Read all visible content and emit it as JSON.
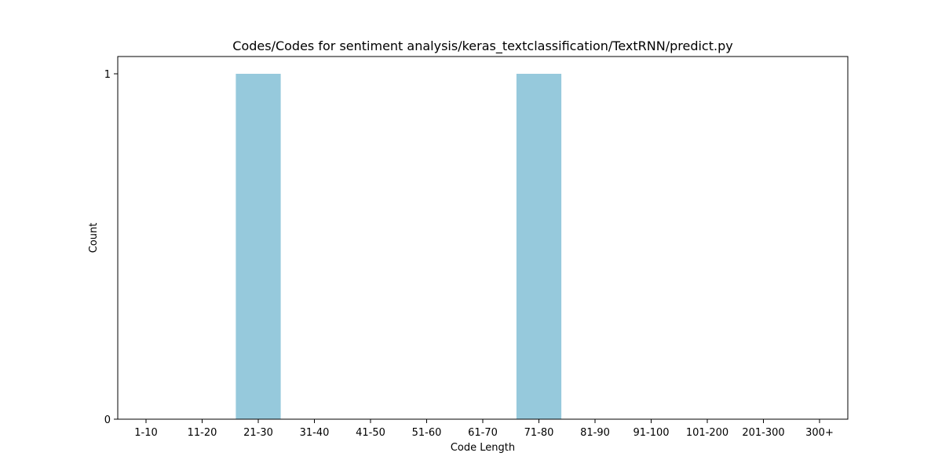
{
  "chart_data": {
    "type": "bar",
    "title": "Codes/Codes for sentiment analysis/keras_textclassification/TextRNN/predict.py",
    "xlabel": "Code Length",
    "ylabel": "Count",
    "categories": [
      "1-10",
      "11-20",
      "21-30",
      "31-40",
      "41-50",
      "51-60",
      "61-70",
      "71-80",
      "81-90",
      "91-100",
      "101-200",
      "201-300",
      "300+"
    ],
    "values": [
      0,
      0,
      1,
      0,
      0,
      0,
      0,
      1,
      0,
      0,
      0,
      0,
      0
    ],
    "ylim": [
      0,
      1
    ],
    "yticks": [
      "0",
      "1"
    ],
    "grid": false,
    "bar_color": "#96c9dc"
  }
}
